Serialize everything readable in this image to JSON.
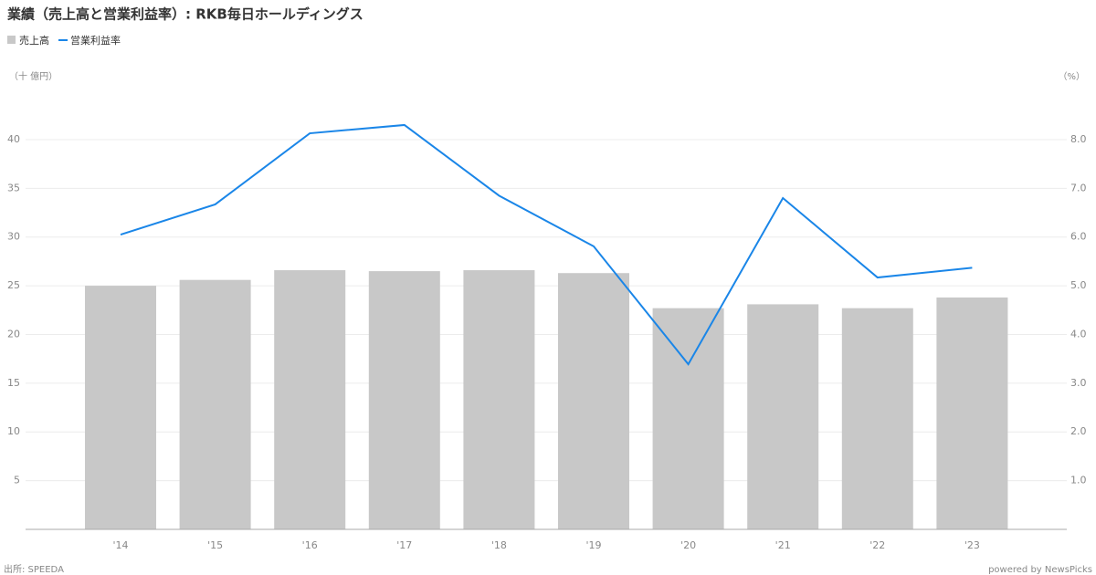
{
  "chart_data": {
    "type": "bar_line",
    "title": "業績（売上高と営業利益率）: RKB毎日ホールディングス",
    "y_label": "（十 億円）",
    "y2_label": "（%）",
    "source": "出所: SPEEDA",
    "credit": "powered by NewsPicks",
    "categories": [
      "'14",
      "'15",
      "'16",
      "'17",
      "'18",
      "'19",
      "'20",
      "'21",
      "'22",
      "'23"
    ],
    "series": [
      {
        "name": "売上高",
        "color": "#c8c8c8",
        "type": "bar",
        "values": [
          25.0,
          25.6,
          26.6,
          26.5,
          26.6,
          26.3,
          22.7,
          23.1,
          22.7,
          23.8
        ]
      },
      {
        "name": "営業利益率",
        "color": "#1a86e8",
        "type": "line",
        "axis": "y2",
        "values": [
          6.05,
          6.67,
          8.13,
          8.3,
          6.85,
          5.81,
          3.39,
          6.8,
          5.17,
          5.37
        ]
      }
    ],
    "ylim": [
      0,
      45
    ],
    "yticks": [
      5,
      10,
      15,
      20,
      25,
      30,
      35,
      40
    ],
    "y2lim": [
      0,
      9
    ],
    "y2ticks": [
      {
        "value": 1,
        "label": "1.0"
      },
      {
        "value": 2,
        "label": "2.0"
      },
      {
        "value": 3,
        "label": "3.0"
      },
      {
        "value": 4,
        "label": "4.0"
      },
      {
        "value": 5,
        "label": "5.0"
      },
      {
        "value": 6,
        "label": "6.0"
      },
      {
        "value": 7,
        "label": "7.0"
      },
      {
        "value": 8,
        "label": "8.0"
      }
    ],
    "grid": true
  }
}
